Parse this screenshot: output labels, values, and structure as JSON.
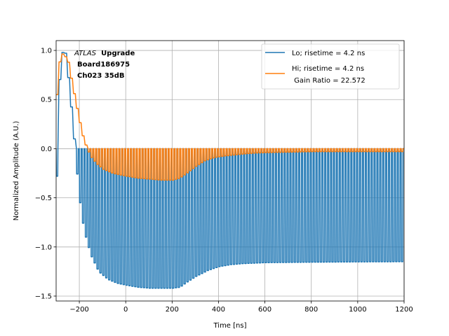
{
  "chart_data": {
    "type": "line",
    "title": "",
    "xlabel": "Time [ns]",
    "ylabel": "Normalized Amplitude (A.U.)",
    "xlim": [
      -300,
      1200
    ],
    "ylim": [
      -1.55,
      1.1
    ],
    "xticks": [
      -200,
      0,
      200,
      400,
      600,
      800,
      1000,
      1200
    ],
    "xtick_labels": [
      "−200",
      "0",
      "200",
      "400",
      "600",
      "800",
      "1000",
      "1200"
    ],
    "yticks": [
      -1.5,
      -1.0,
      -0.5,
      0.0,
      0.5,
      1.0
    ],
    "ytick_labels": [
      "−1.5",
      "−1.0",
      "−0.5",
      "0.0",
      "0.5",
      "1.0"
    ],
    "grid": true,
    "legend_position": "top-right",
    "annotation": {
      "experiment": "ATLAS",
      "tag": "Upgrade",
      "board": "Board186975",
      "channel": "Ch023 35dB"
    },
    "series": [
      {
        "name": "Lo; risetime = 4.2 ns",
        "color": "#1f77b4",
        "oscillation": {
          "period_ns": 12.5,
          "upper_level": 0.0,
          "envelope_x": [
            -300,
            -285,
            -275,
            -260,
            -245,
            -230,
            -215,
            -200,
            -185,
            -170,
            -150,
            -120,
            -80,
            -40,
            0,
            50,
            100,
            150,
            200,
            230,
            260,
            300,
            350,
            400,
            450,
            500,
            600,
            800,
            1000,
            1200
          ],
          "envelope_lower": [
            -0.28,
            0.9,
            0.98,
            0.97,
            0.6,
            0.25,
            -0.2,
            -0.55,
            -0.8,
            -0.95,
            -1.1,
            -1.25,
            -1.33,
            -1.37,
            -1.39,
            -1.41,
            -1.42,
            -1.42,
            -1.42,
            -1.41,
            -1.36,
            -1.3,
            -1.24,
            -1.2,
            -1.18,
            -1.17,
            -1.16,
            -1.155,
            -1.152,
            -1.15
          ]
        }
      },
      {
        "name": "Hi; risetime = 4.2 ns\n Gain Ratio = 22.572",
        "legend_line1": "Hi; risetime = 4.2 ns",
        "legend_line2": " Gain Ratio = 22.572",
        "color": "#ff7f0e",
        "oscillation": {
          "period_ns": 12.5,
          "upper_level": 0.0,
          "envelope_x": [
            -300,
            -285,
            -270,
            -250,
            -230,
            -210,
            -190,
            -170,
            -150,
            -130,
            -100,
            -60,
            -20,
            0,
            50,
            100,
            150,
            200,
            230,
            260,
            300,
            340,
            380,
            420,
            460,
            500,
            550,
            600,
            700,
            800,
            1000,
            1200
          ],
          "envelope_lower": [
            0.55,
            0.95,
            0.97,
            0.88,
            0.62,
            0.38,
            0.15,
            0.0,
            -0.09,
            -0.15,
            -0.21,
            -0.25,
            -0.27,
            -0.28,
            -0.3,
            -0.31,
            -0.32,
            -0.32,
            -0.3,
            -0.25,
            -0.18,
            -0.12,
            -0.09,
            -0.075,
            -0.065,
            -0.055,
            -0.045,
            -0.04,
            -0.035,
            -0.03,
            -0.03,
            -0.03
          ]
        }
      }
    ]
  }
}
